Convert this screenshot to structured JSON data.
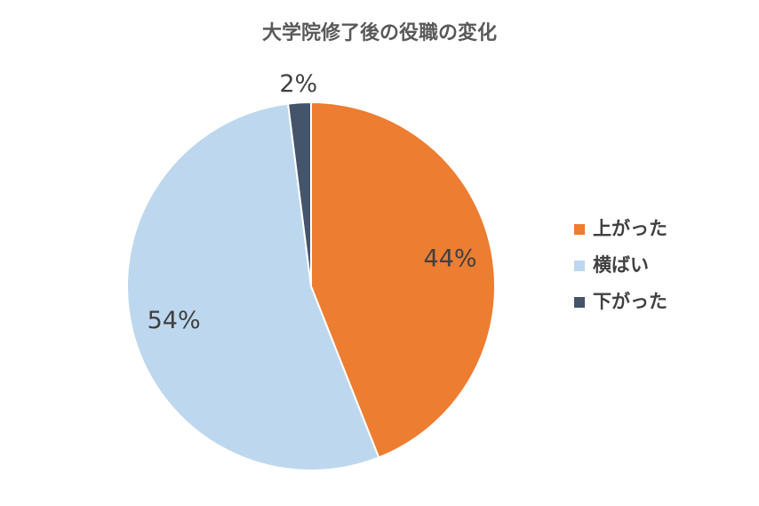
{
  "chart_data": {
    "type": "pie",
    "title": "大学院修了後の役職の変化",
    "categories": [
      "上がった",
      "横ばい",
      "下がった"
    ],
    "values": [
      44,
      54,
      2
    ],
    "value_labels": [
      "44%",
      "54%",
      "2%"
    ],
    "colors": [
      "#ED7D31",
      "#BDD7EE",
      "#44546A"
    ],
    "legend": "right"
  }
}
